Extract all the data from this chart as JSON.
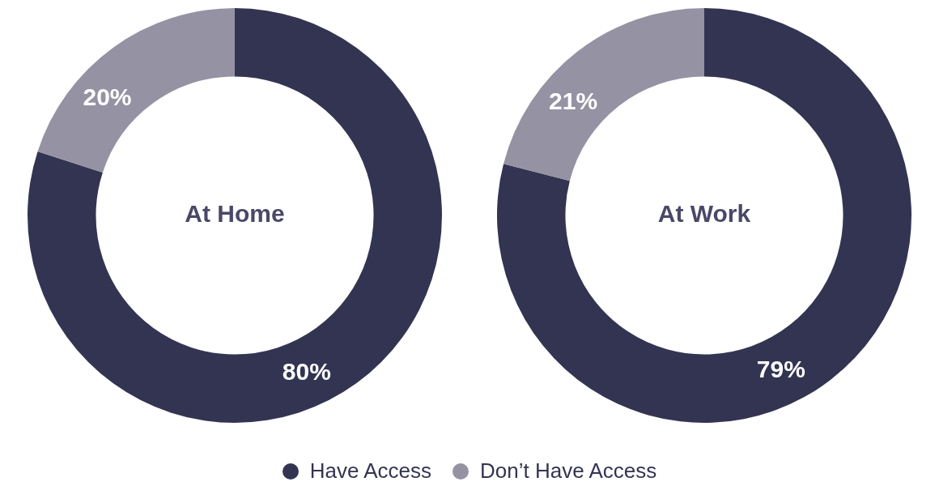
{
  "chart_data": [
    {
      "type": "donut",
      "title": "At Home",
      "categories": [
        "Have Access",
        "Don’t Have Access"
      ],
      "values": [
        80,
        20
      ],
      "colors": [
        "#333452",
        "#9592a3"
      ],
      "value_labels": [
        "80%",
        "20%"
      ],
      "legend": "bottom"
    },
    {
      "type": "donut",
      "title": "At Work",
      "categories": [
        null,
        null
      ],
      "values": [
        79,
        21
      ],
      "colors": [
        "#333452",
        "#9592a3"
      ],
      "value_labels": [
        "79%",
        "21%"
      ]
    }
  ]
}
